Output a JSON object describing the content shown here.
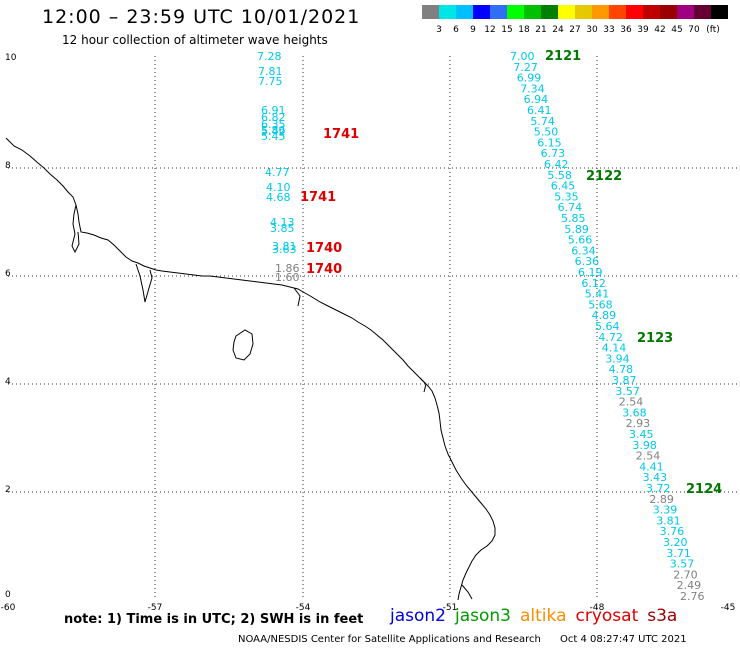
{
  "header": {
    "title": "12:00 – 23:59 UTC 10/01/2021",
    "subtitle": "12 hour collection of altimeter wave heights"
  },
  "colorbar": {
    "colors": [
      "#808080",
      "#00e5e5",
      "#00bfff",
      "#0000ff",
      "#2f6ff5",
      "#00ff00",
      "#00c000",
      "#008000",
      "#ffff00",
      "#e6c800",
      "#ff9900",
      "#ff4500",
      "#ff0000",
      "#c00000",
      "#990000",
      "#a00080",
      "#660033",
      "#000000"
    ],
    "labels": [
      "3",
      "6",
      "9",
      "12",
      "15",
      "18",
      "21",
      "24",
      "27",
      "30",
      "33",
      "36",
      "39",
      "42",
      "45",
      "70",
      "(ft)"
    ]
  },
  "axes": {
    "x_ticks": [
      "-60",
      "-57",
      "-54",
      "-51",
      "-48",
      "-45"
    ],
    "y_ticks": [
      "0",
      "2",
      "4",
      "6",
      "8",
      "10"
    ]
  },
  "colors": {
    "cyan": "#00c8e8",
    "gray": "#808080",
    "pass_red": "#dd0000",
    "pass_green": "#007700"
  },
  "passes": [
    {
      "label": "2121",
      "color": "green"
    },
    {
      "label": "2122",
      "color": "green"
    },
    {
      "label": "2123",
      "color": "green"
    },
    {
      "label": "2124",
      "color": "green"
    },
    {
      "label": "1741",
      "color": "red"
    },
    {
      "label": "1741",
      "color": "red"
    },
    {
      "label": "1740",
      "color": "red"
    },
    {
      "label": "1740",
      "color": "red"
    }
  ],
  "track_left": [
    {
      "v": "7.28",
      "c": "cyan"
    },
    {
      "v": "7.81",
      "c": "cyan"
    },
    {
      "v": "7.75",
      "c": "cyan"
    },
    {
      "v": "6.91",
      "c": "cyan"
    },
    {
      "v": "6.82",
      "c": "cyan"
    },
    {
      "v": "6.35",
      "c": "cyan"
    },
    {
      "v": "5.86",
      "c": "cyan"
    },
    {
      "v": "5.42",
      "c": "cyan"
    },
    {
      "v": "5.45",
      "c": "cyan"
    },
    {
      "v": "4.77",
      "c": "cyan"
    },
    {
      "v": "4.10",
      "c": "cyan"
    },
    {
      "v": "4.68",
      "c": "cyan"
    },
    {
      "v": "4.13",
      "c": "cyan"
    },
    {
      "v": "3.85",
      "c": "cyan"
    },
    {
      "v": "3.81",
      "c": "cyan"
    },
    {
      "v": "3.63",
      "c": "cyan"
    },
    {
      "v": "1.86",
      "c": "gray"
    },
    {
      "v": "1.60",
      "c": "gray"
    }
  ],
  "track_right": [
    {
      "v": "7.00",
      "c": "cyan"
    },
    {
      "v": "7.27",
      "c": "cyan"
    },
    {
      "v": "6.99",
      "c": "cyan"
    },
    {
      "v": "7.34",
      "c": "cyan"
    },
    {
      "v": "6.94",
      "c": "cyan"
    },
    {
      "v": "6.41",
      "c": "cyan"
    },
    {
      "v": "5.74",
      "c": "cyan"
    },
    {
      "v": "5.50",
      "c": "cyan"
    },
    {
      "v": "6.15",
      "c": "cyan"
    },
    {
      "v": "6.73",
      "c": "cyan"
    },
    {
      "v": "6.42",
      "c": "cyan"
    },
    {
      "v": "5.58",
      "c": "cyan"
    },
    {
      "v": "6.45",
      "c": "cyan"
    },
    {
      "v": "5.35",
      "c": "cyan"
    },
    {
      "v": "6.74",
      "c": "cyan"
    },
    {
      "v": "5.85",
      "c": "cyan"
    },
    {
      "v": "5.89",
      "c": "cyan"
    },
    {
      "v": "5.66",
      "c": "cyan"
    },
    {
      "v": "6.34",
      "c": "cyan"
    },
    {
      "v": "6.36",
      "c": "cyan"
    },
    {
      "v": "6.19",
      "c": "cyan"
    },
    {
      "v": "6.12",
      "c": "cyan"
    },
    {
      "v": "5.41",
      "c": "cyan"
    },
    {
      "v": "5.68",
      "c": "cyan"
    },
    {
      "v": "4.89",
      "c": "cyan"
    },
    {
      "v": "5.64",
      "c": "cyan"
    },
    {
      "v": "4.72",
      "c": "cyan"
    },
    {
      "v": "4.14",
      "c": "cyan"
    },
    {
      "v": "3.94",
      "c": "cyan"
    },
    {
      "v": "4.78",
      "c": "cyan"
    },
    {
      "v": "3.87",
      "c": "cyan"
    },
    {
      "v": "3.57",
      "c": "cyan"
    },
    {
      "v": "2.54",
      "c": "gray"
    },
    {
      "v": "3.68",
      "c": "cyan"
    },
    {
      "v": "2.93",
      "c": "gray"
    },
    {
      "v": "3.45",
      "c": "cyan"
    },
    {
      "v": "3.98",
      "c": "cyan"
    },
    {
      "v": "2.54",
      "c": "gray"
    },
    {
      "v": "4.41",
      "c": "cyan"
    },
    {
      "v": "3.43",
      "c": "cyan"
    },
    {
      "v": "3.72",
      "c": "cyan"
    },
    {
      "v": "2.89",
      "c": "gray"
    },
    {
      "v": "3.39",
      "c": "cyan"
    },
    {
      "v": "3.81",
      "c": "cyan"
    },
    {
      "v": "3.76",
      "c": "cyan"
    },
    {
      "v": "3.20",
      "c": "cyan"
    },
    {
      "v": "3.71",
      "c": "cyan"
    },
    {
      "v": "3.57",
      "c": "cyan"
    },
    {
      "v": "2.70",
      "c": "gray"
    },
    {
      "v": "2.49",
      "c": "gray"
    },
    {
      "v": "2.76",
      "c": "gray"
    }
  ],
  "note": "note: 1) Time is in UTC; 2) SWH is in feet",
  "legend": [
    {
      "name": "jason2",
      "color": "#0000dd"
    },
    {
      "name": "jason3",
      "color": "#009900"
    },
    {
      "name": "altika",
      "color": "#ff8c00"
    },
    {
      "name": "cryosat",
      "color": "#dd0000"
    },
    {
      "name": "s3a",
      "color": "#990000"
    }
  ],
  "footer": {
    "credit": "NOAA/NESDIS Center for Satellite Applications and Research",
    "timestamp": "Oct  4 08:27:47 UTC 2021"
  }
}
